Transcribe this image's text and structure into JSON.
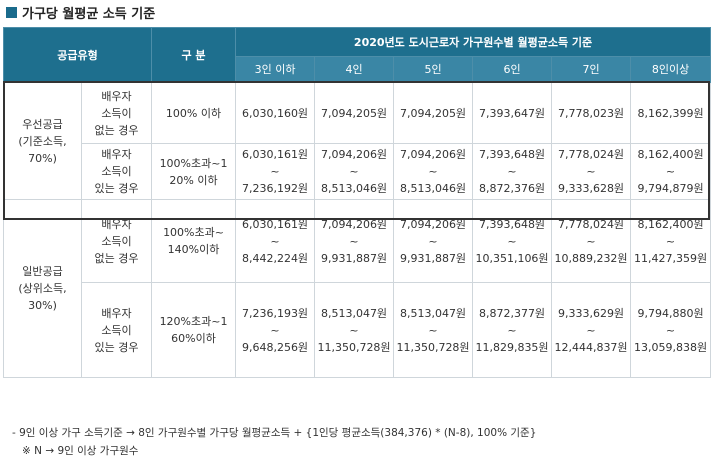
{
  "title": "가구당 월평균 소득 기준",
  "header": {
    "supply_type": "공급유형",
    "category": "구 분",
    "group_title": "2020년도 도시근로자 가구원수별 월평균소득 기준",
    "household_sizes": [
      "3인 이하",
      "4인",
      "5인",
      "6인",
      "7인",
      "8인이상"
    ]
  },
  "rows": [
    {
      "group": [
        "우선공급",
        "(기준소득,",
        "70%)"
      ],
      "subrows": [
        {
          "spouse": [
            "배우자",
            "소득이",
            "없는 경우"
          ],
          "range": [
            "100% 이하"
          ],
          "values": [
            [
              "6,030,160원"
            ],
            [
              "7,094,205원"
            ],
            [
              "7,094,205원"
            ],
            [
              "7,393,647원"
            ],
            [
              "7,778,023원"
            ],
            [
              "8,162,399원"
            ]
          ]
        },
        {
          "spouse": [
            "배우자",
            "소득이",
            "있는 경우"
          ],
          "range": [
            "100%초과~1",
            "20% 이하"
          ],
          "values": [
            [
              "6,030,161원~",
              "7,236,192원"
            ],
            [
              "7,094,206원~",
              "8,513,046원"
            ],
            [
              "7,094,206원~",
              "8,513,046원"
            ],
            [
              "7,393,648원~",
              "8,872,376원"
            ],
            [
              "7,778,024원~",
              "9,333,628원"
            ],
            [
              "8,162,400원~",
              "9,794,879원"
            ]
          ]
        }
      ]
    },
    {
      "group": [
        "일반공급",
        "(상위소득,",
        "30%)"
      ],
      "subrows": [
        {
          "spouse": [
            "배우자",
            "소득이",
            "없는 경우"
          ],
          "range": [
            "100%초과~",
            "140%이하"
          ],
          "values": [
            [
              "6,030,161원 ~",
              "8,442,224원"
            ],
            [
              "7,094,206원~",
              "9,931,887원"
            ],
            [
              "7,094,206원~",
              "9,931,887원"
            ],
            [
              "7,393,648원~",
              "10,351,106원"
            ],
            [
              "7,778,024원~",
              "10,889,232원"
            ],
            [
              "8,162,400원~",
              "11,427,359원"
            ]
          ]
        },
        {
          "spouse": [
            "배우자",
            "소득이",
            "있는 경우"
          ],
          "range": [
            "120%초과~1",
            "60%이하"
          ],
          "values": [
            [
              "7,236,193원~",
              "9,648,256원"
            ],
            [
              "8,513,047원~",
              "11,350,728원"
            ],
            [
              "8,513,047원~",
              "11,350,728원"
            ],
            [
              "8,872,377원~",
              "11,829,835원"
            ],
            [
              "9,333,629원~",
              "12,444,837원"
            ],
            [
              "9,794,880원~",
              "13,059,838원"
            ]
          ]
        }
      ]
    }
  ],
  "notes": [
    "-   9인 이상 가구 소득기준 → 8인 가구원수별 가구당 월평균소득 + {1인당 평균소득(384,376) * (N-8), 100% 기준}",
    "※ N → 9인 이상 가구원수"
  ]
}
